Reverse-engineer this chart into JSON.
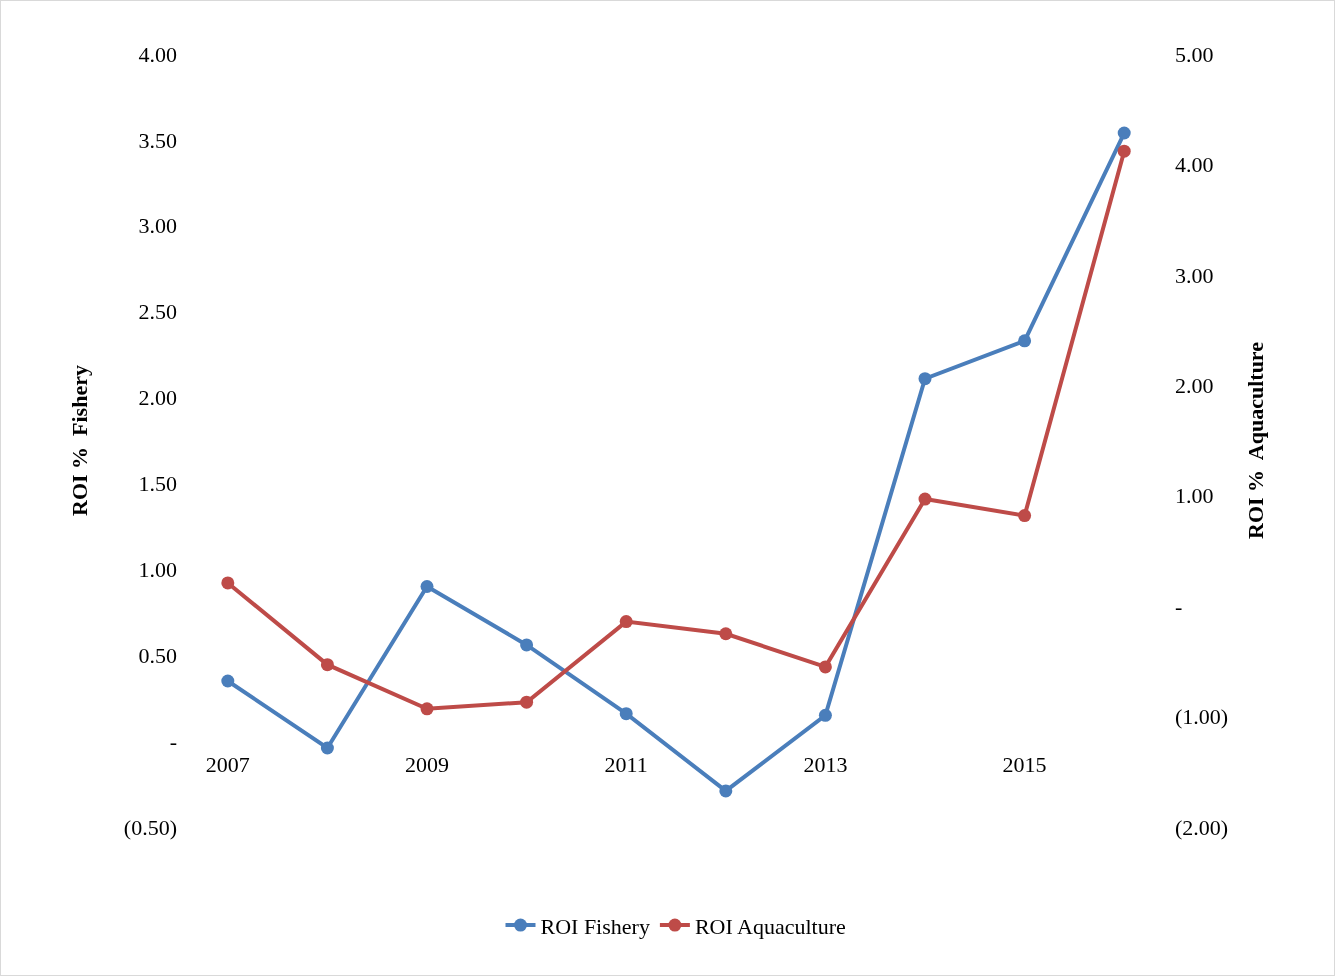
{
  "chart_data": {
    "type": "line",
    "ylabel": "ROI %  Fishery",
    "y2label": "ROI %  Aquaculture",
    "categories": [
      "2007",
      null,
      "2009",
      null,
      "2011",
      null,
      "2013",
      null,
      "2015",
      null
    ],
    "ylim": [
      -0.5,
      4
    ],
    "yticks": [
      {
        "value": -0.5,
        "label": "(0.50)"
      },
      {
        "value": 0,
        "label": "-"
      },
      {
        "value": 0.5,
        "label": "0.50"
      },
      {
        "value": 1,
        "label": "1.00"
      },
      {
        "value": 1.5,
        "label": "1.50"
      },
      {
        "value": 2,
        "label": "2.00"
      },
      {
        "value": 2.5,
        "label": "2.50"
      },
      {
        "value": 3,
        "label": "3.00"
      },
      {
        "value": 3.5,
        "label": "3.50"
      },
      {
        "value": 4,
        "label": "4.00"
      }
    ],
    "y2lim": [
      -2,
      5
    ],
    "y2ticks": [
      {
        "value": -2,
        "label": "(2.00)"
      },
      {
        "value": -1,
        "label": "(1.00)"
      },
      {
        "value": 0,
        "label": "-"
      },
      {
        "value": 1,
        "label": "1.00"
      },
      {
        "value": 2,
        "label": "2.00"
      },
      {
        "value": 3,
        "label": "3.00"
      },
      {
        "value": 4,
        "label": "4.00"
      },
      {
        "value": 5,
        "label": "5.00"
      }
    ],
    "series": [
      {
        "name": "ROI Fishery",
        "color": "#4a7ebb",
        "values": [
          0.35,
          -0.04,
          0.9,
          0.56,
          0.16,
          -0.29,
          0.15,
          2.11,
          2.33,
          3.54
        ]
      },
      {
        "name": "ROI Aquaculture",
        "color": "#be4b48",
        "axis": "y2",
        "values": [
          0.21,
          -0.53,
          -0.93,
          -0.87,
          -0.14,
          -0.25,
          -0.55,
          0.97,
          0.82,
          4.12
        ]
      }
    ],
    "marker": "circle",
    "line_style": "solid",
    "grid": false,
    "legend": "bottom"
  }
}
